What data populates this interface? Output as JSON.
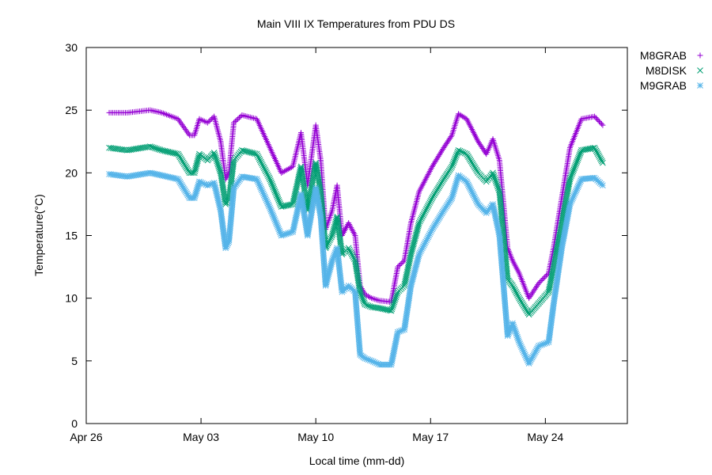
{
  "chart_data": {
    "type": "scatter",
    "title": "Main VIII   IX Temperatures from PDU   DS",
    "xlabel": "Local time (mm-dd)",
    "ylabel": "Temperature(°C)",
    "x_units": "days since Apr 26",
    "xlim": [
      0,
      33
    ],
    "ylim": [
      0,
      30
    ],
    "yticks": [
      0,
      5,
      10,
      15,
      20,
      25,
      30
    ],
    "xticks": [
      {
        "value": 0,
        "label": "Apr 26"
      },
      {
        "value": 7,
        "label": "May 03"
      },
      {
        "value": 14,
        "label": "May 10"
      },
      {
        "value": 21,
        "label": "May 17"
      },
      {
        "value": 28,
        "label": "May 24"
      }
    ],
    "legend_position": "outside-top-right",
    "grid": false,
    "x": [
      1.4,
      2.5,
      3.9,
      4.6,
      5.6,
      6.3,
      6.6,
      6.9,
      7.4,
      7.8,
      8.2,
      8.5,
      8.7,
      9.0,
      9.5,
      10.4,
      11.2,
      11.9,
      12.6,
      13.1,
      13.5,
      14.0,
      14.3,
      14.6,
      15.0,
      15.3,
      15.6,
      16.0,
      16.4,
      16.7,
      17.0,
      17.4,
      17.9,
      18.6,
      19.0,
      19.4,
      19.8,
      20.3,
      21.1,
      21.8,
      22.3,
      22.7,
      23.2,
      23.9,
      24.4,
      24.8,
      25.2,
      25.7,
      26.0,
      26.4,
      27.0,
      27.6,
      28.2,
      28.5,
      29.0,
      29.5,
      30.2,
      31.0,
      31.5
    ],
    "series": [
      {
        "name": "M8GRAB",
        "marker": "+",
        "color": "#9400d3",
        "values": [
          24.8,
          24.8,
          25.0,
          24.8,
          24.3,
          23.0,
          23.0,
          24.3,
          24.0,
          24.5,
          22.5,
          19.5,
          20.0,
          24.0,
          24.6,
          24.3,
          22.0,
          20.0,
          20.5,
          23.2,
          19.0,
          23.8,
          21.0,
          15.5,
          17.0,
          19.0,
          15.0,
          16.0,
          15.0,
          11.0,
          10.3,
          10.0,
          9.8,
          9.7,
          12.5,
          13.0,
          16.0,
          18.5,
          20.5,
          22.0,
          23.0,
          24.7,
          24.3,
          22.5,
          21.5,
          22.7,
          21.0,
          14.0,
          13.0,
          12.0,
          10.0,
          11.2,
          12.0,
          14.0,
          18.0,
          22.0,
          24.3,
          24.5,
          23.8
        ]
      },
      {
        "name": "M8DISK",
        "marker": "x",
        "color": "#009e73",
        "values": [
          22.0,
          21.8,
          22.1,
          21.8,
          21.5,
          20.0,
          20.0,
          21.5,
          21.0,
          21.6,
          20.0,
          17.5,
          17.8,
          21.0,
          21.8,
          21.5,
          19.5,
          17.3,
          17.5,
          20.5,
          17.0,
          20.8,
          18.5,
          14.0,
          15.0,
          16.5,
          13.5,
          14.0,
          13.0,
          10.5,
          9.5,
          9.3,
          9.2,
          9.0,
          10.5,
          11.0,
          13.5,
          16.0,
          18.0,
          19.5,
          20.5,
          21.8,
          21.5,
          20.0,
          19.3,
          20.0,
          18.5,
          11.5,
          11.0,
          10.0,
          8.7,
          9.6,
          10.5,
          12.5,
          16.0,
          19.5,
          21.8,
          22.0,
          20.8
        ]
      },
      {
        "name": "M9GRAB",
        "marker": "*",
        "color": "#56b4e9",
        "values": [
          19.9,
          19.7,
          20.0,
          19.8,
          19.5,
          18.0,
          18.0,
          19.3,
          19.0,
          19.2,
          17.0,
          14.0,
          14.5,
          18.8,
          19.7,
          19.5,
          17.2,
          15.0,
          15.3,
          18.3,
          15.0,
          18.8,
          16.5,
          11.0,
          13.0,
          14.0,
          10.5,
          11.0,
          10.5,
          5.5,
          5.2,
          5.0,
          4.7,
          4.7,
          7.3,
          7.5,
          11.0,
          13.5,
          15.5,
          17.0,
          18.0,
          19.8,
          19.3,
          17.5,
          16.8,
          17.5,
          15.0,
          7.0,
          8.0,
          6.5,
          4.8,
          6.2,
          6.5,
          9.5,
          14.0,
          17.5,
          19.5,
          19.6,
          19.0
        ]
      }
    ]
  }
}
